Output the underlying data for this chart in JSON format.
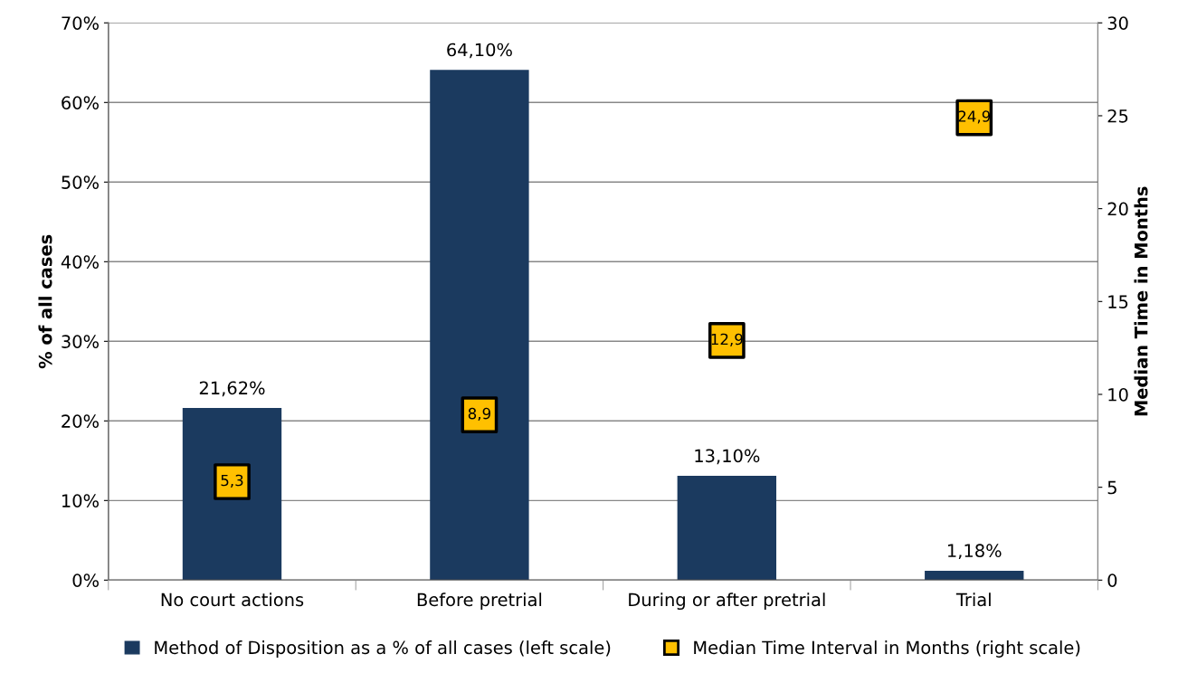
{
  "chart_data": {
    "type": "bar",
    "categories": [
      "No court actions",
      "Before pretrial",
      "During or after pretrial",
      "Trial"
    ],
    "ylabel": "% of all cases",
    "y2label": "Median Time in Months",
    "ylim": [
      0,
      70
    ],
    "yticks": [
      {
        "value": 0,
        "label": "0%"
      },
      {
        "value": 10,
        "label": "10%"
      },
      {
        "value": 20,
        "label": "20%"
      },
      {
        "value": 30,
        "label": "30%"
      },
      {
        "value": 40,
        "label": "40%"
      },
      {
        "value": 50,
        "label": "50%"
      },
      {
        "value": 60,
        "label": "60%"
      },
      {
        "value": 70,
        "label": "70%"
      }
    ],
    "y2lim": [
      0,
      30
    ],
    "y2ticks": [
      0,
      5,
      10,
      15,
      20,
      25,
      30
    ],
    "grid": "y",
    "legend": "bottom",
    "series": [
      {
        "name": "Method of Disposition as a % of all cases (left scale)",
        "color": "#1b3a5f",
        "values": [
          21.62,
          64.1,
          13.1,
          1.18
        ],
        "value_labels": [
          "21,62%",
          "64,10%",
          "13,10%",
          "1,18%"
        ]
      },
      {
        "name": "Median Time Interval in Months (right scale)",
        "type": "scatter",
        "axis": "y2",
        "marker": "square",
        "color": "#ffc000",
        "values": [
          5.3,
          8.9,
          12.9,
          24.9
        ],
        "value_labels": [
          "5,3",
          "8,9",
          "12,9",
          "24,9"
        ]
      }
    ]
  }
}
